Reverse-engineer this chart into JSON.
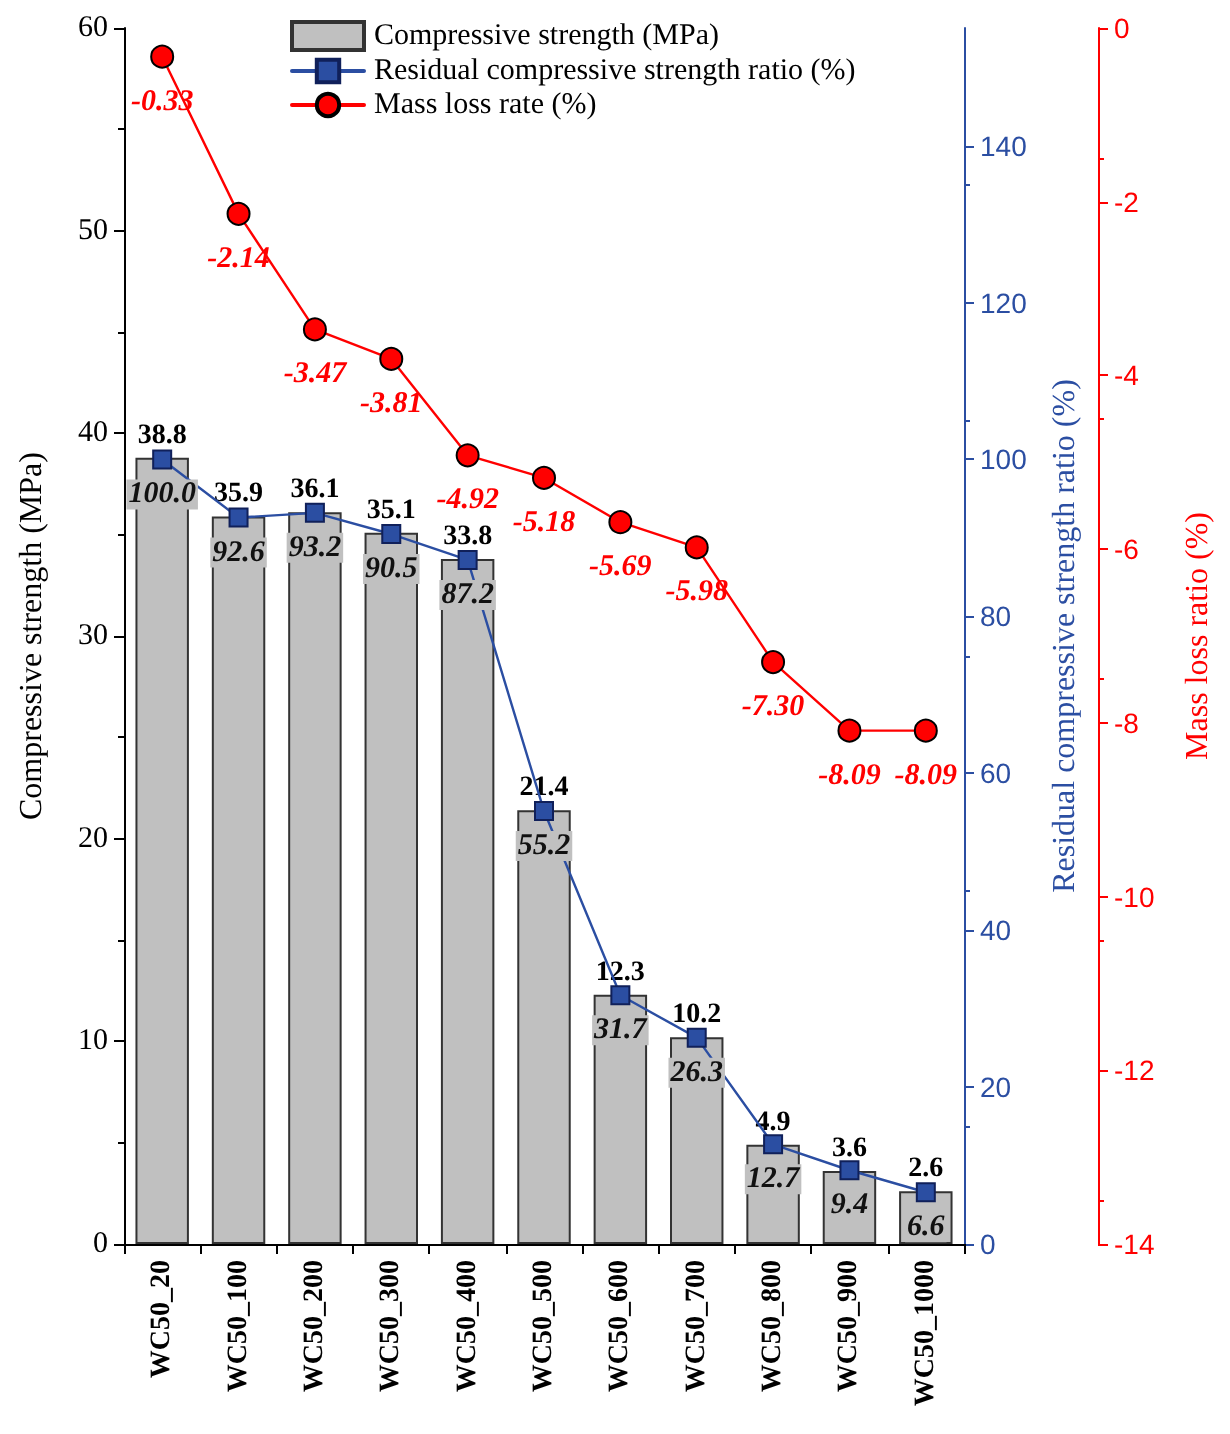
{
  "chart_data": {
    "type": "bar",
    "categories": [
      "WC50_20",
      "WC50_100",
      "WC50_200",
      "WC50_300",
      "WC50_400",
      "WC50_500",
      "WC50_600",
      "WC50_700",
      "WC50_800",
      "WC50_900",
      "WC50_1000"
    ],
    "series": [
      {
        "name": "Compressive strength (MPa)",
        "color": "#c0c0c0",
        "values": [
          38.8,
          35.9,
          36.1,
          35.1,
          33.8,
          21.4,
          12.3,
          10.2,
          4.9,
          3.6,
          2.6
        ],
        "value_labels": [
          "38.8",
          "35.9",
          "36.1",
          "35.1",
          "33.8",
          "21.4",
          "12.3",
          "10.2",
          "4.9",
          "3.6",
          "2.6"
        ]
      },
      {
        "name": "Residual compressive strength ratio (%)",
        "type": "line",
        "axis": "y2",
        "color": "#2b4ea2",
        "marker": "square",
        "line_style": "solid",
        "values": [
          100.0,
          92.6,
          93.2,
          90.5,
          87.2,
          55.2,
          31.7,
          26.3,
          12.7,
          9.4,
          6.6
        ],
        "value_labels": [
          "100.0",
          "92.6",
          "93.2",
          "90.5",
          "87.2",
          "55.2",
          "31.7",
          "26.3",
          "12.7",
          "9.4",
          "6.6"
        ]
      },
      {
        "name": "Mass loss rate (%)",
        "type": "line",
        "axis": "y3",
        "color": "#ff0000",
        "marker": "circle",
        "line_style": "solid",
        "values": [
          -0.33,
          -2.14,
          -3.47,
          -3.81,
          -4.92,
          -5.18,
          -5.69,
          -5.98,
          -7.3,
          -8.09,
          -8.09
        ],
        "value_labels": [
          "-0.33",
          "-2.14",
          "-3.47",
          "-3.81",
          "-4.92",
          "-5.18",
          "-5.69",
          "-5.98",
          "-7.30",
          "-8.09",
          "-8.09"
        ]
      }
    ],
    "ylabel": "Compressive strength (MPa)",
    "y2label": "Residual compressive strength ratio (%)",
    "y3label": "Mass loss ratio (%)",
    "ylim": [
      0,
      60
    ],
    "yticks": [
      0,
      10,
      20,
      30,
      40,
      50,
      60
    ],
    "y2lim": [
      0,
      155
    ],
    "y2ticks": [
      0,
      20,
      40,
      60,
      80,
      100,
      120,
      140
    ],
    "y3lim": [
      -14,
      0
    ],
    "y3ticks": [
      -14,
      -12,
      -10,
      -8,
      -6,
      -4,
      -2,
      0
    ],
    "legend": "top",
    "grid": false
  }
}
